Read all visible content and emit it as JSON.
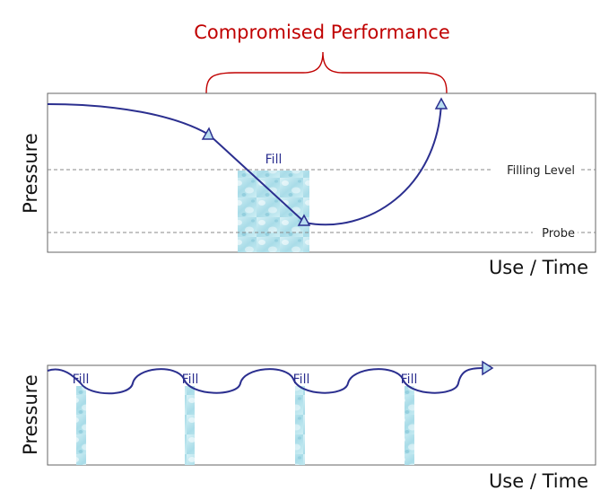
{
  "top_diagram": {
    "annotation": "Compromised Performance",
    "y_axis_label": "Pressure",
    "x_axis_label": "Use / Time",
    "fill_label": "Fill",
    "filling_level_label": "Filling Level",
    "probe_label": "Probe"
  },
  "bottom_diagram": {
    "y_axis_label": "Pressure",
    "x_axis_label": "Use / Time",
    "fill_labels": [
      "Fill",
      "Fill",
      "Fill",
      "Fill"
    ]
  },
  "colors": {
    "curve": "#2b2f8f",
    "annotation": "#c00000",
    "water_light": "#d7f1f6",
    "water_mid": "#a9dce8",
    "water_dark": "#7fc3d6",
    "guide_line": "#888888"
  }
}
